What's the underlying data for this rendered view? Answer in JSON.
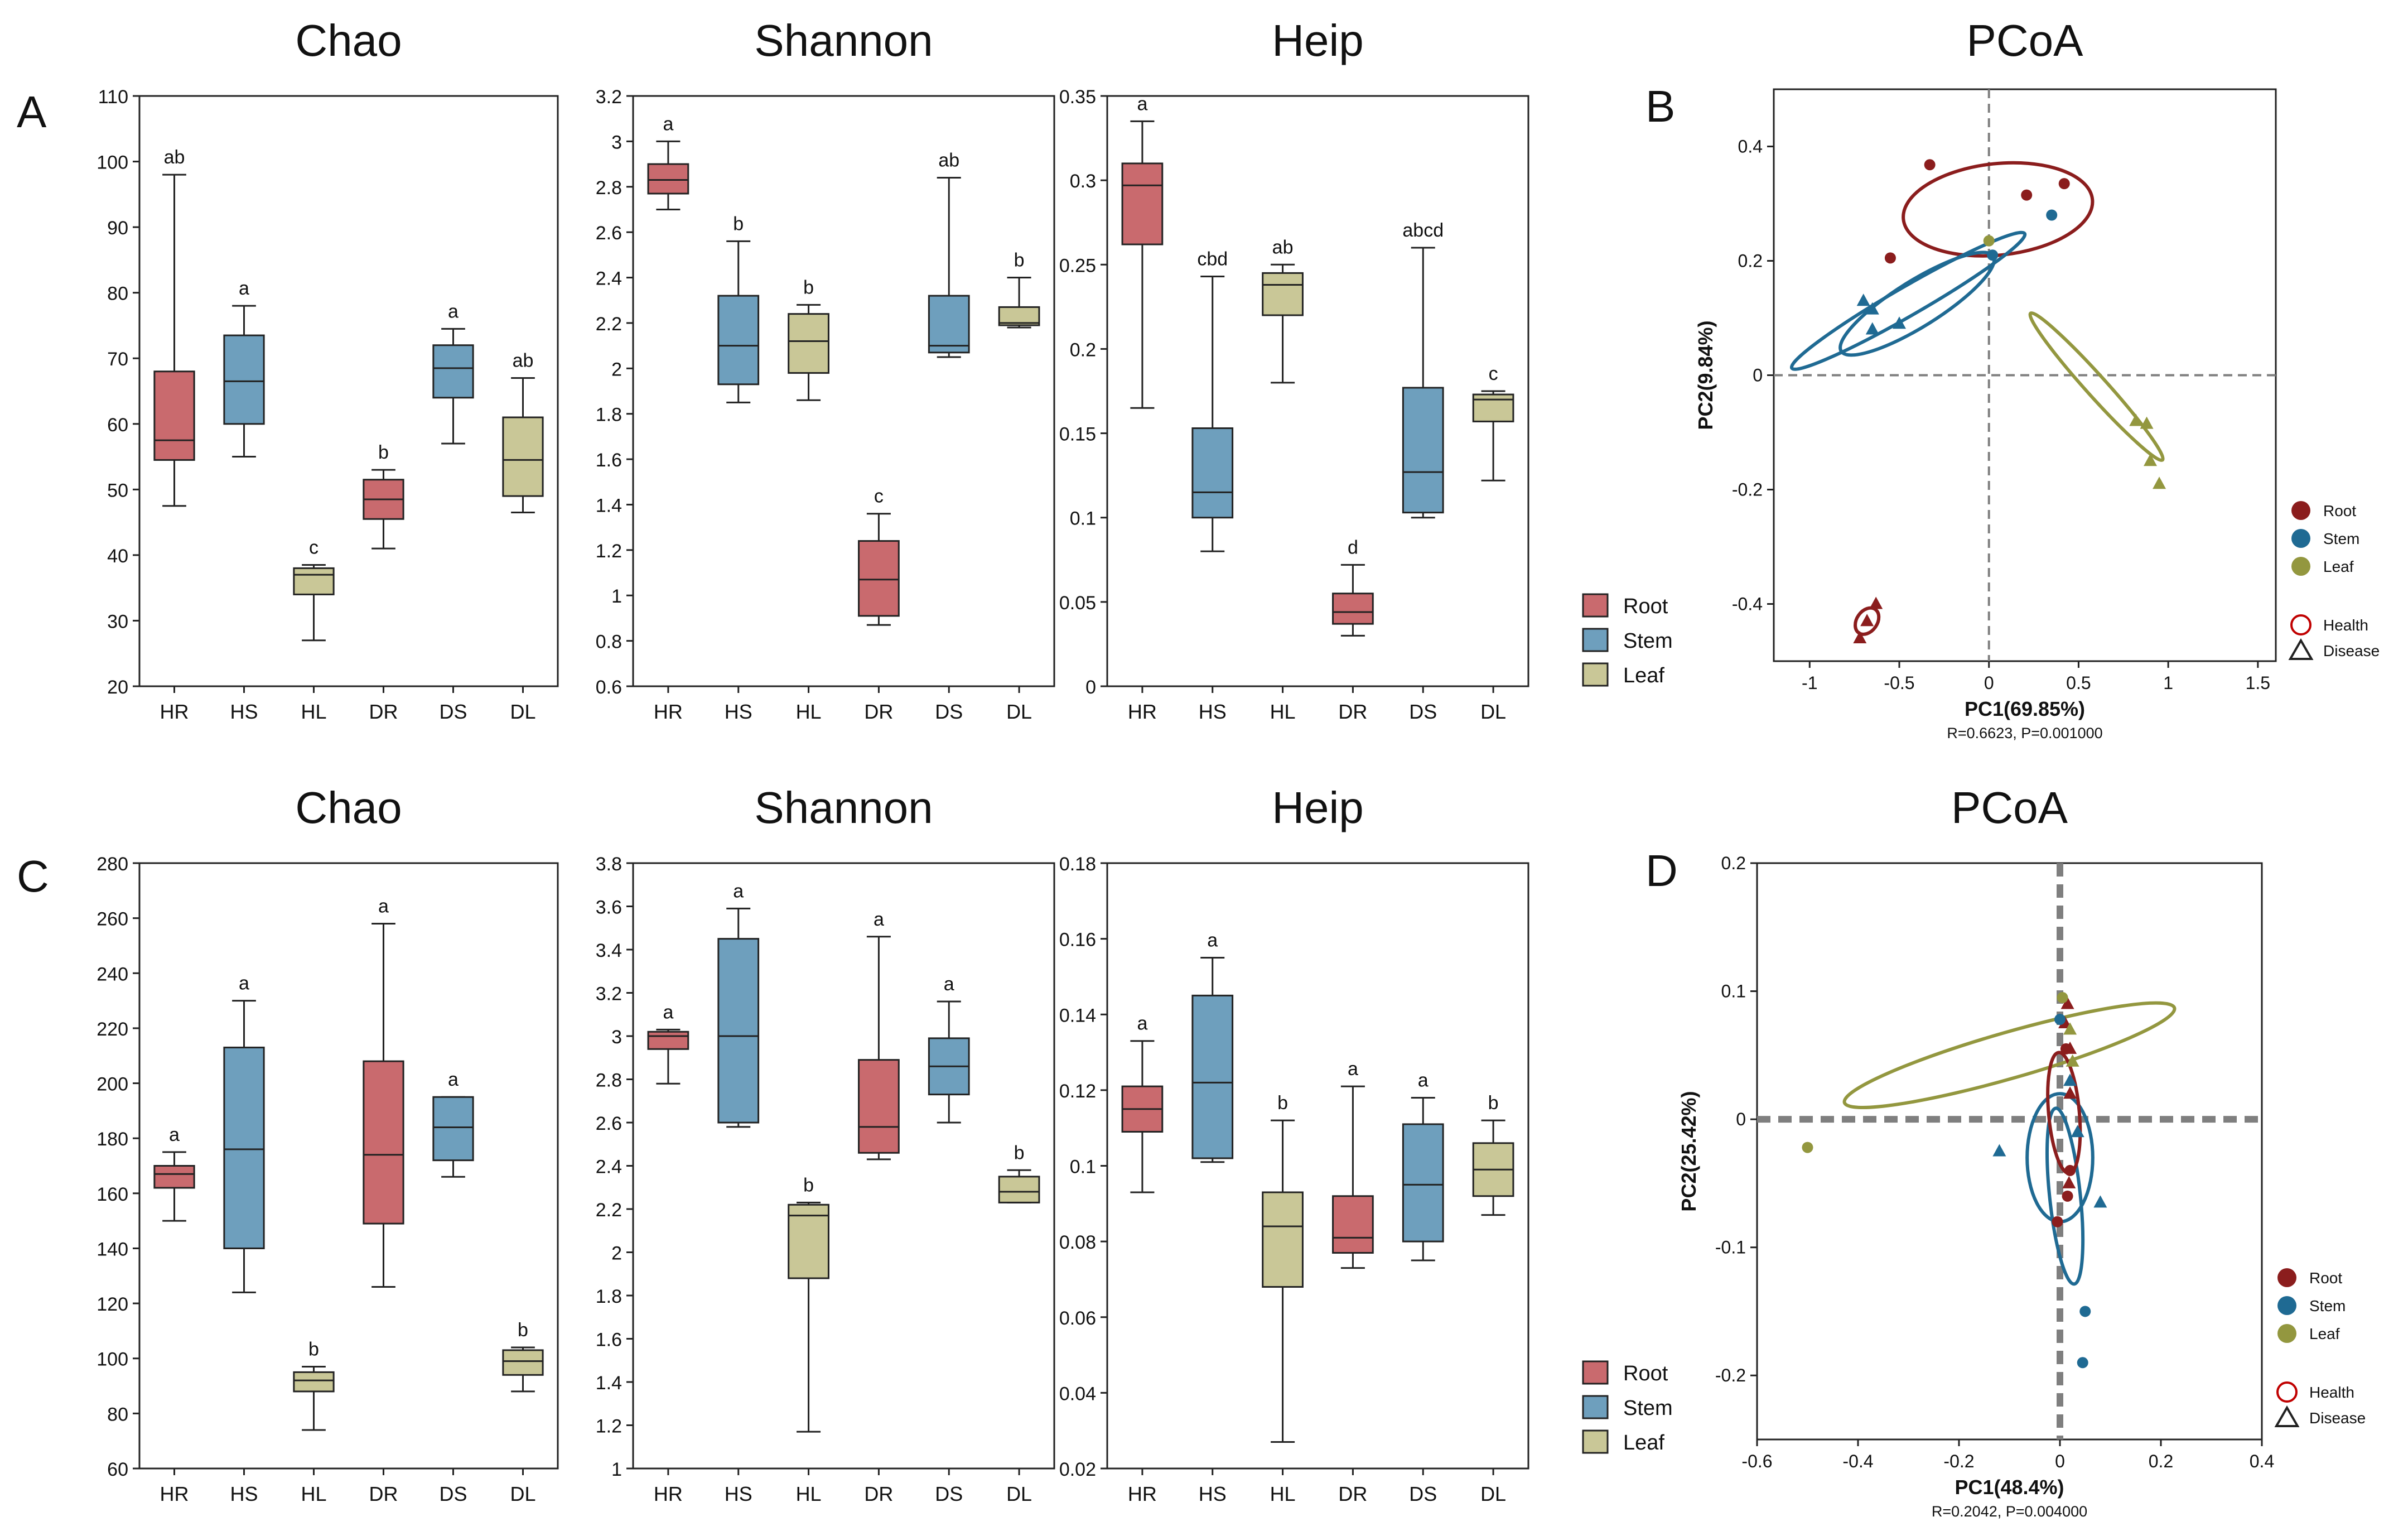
{
  "panel_letters": [
    "A",
    "B",
    "C",
    "D"
  ],
  "legend_groups": [
    {
      "name": "Root",
      "color": "#c96a6e"
    },
    {
      "name": "Stem",
      "color": "#6e9fbd"
    },
    {
      "name": "Leaf",
      "color": "#c9c797"
    }
  ],
  "pcoa_groups": [
    {
      "name": "Root",
      "color": "#8b1d1d"
    },
    {
      "name": "Stem",
      "color": "#1f6a93"
    },
    {
      "name": "Leaf",
      "color": "#93973f"
    }
  ],
  "pcoa_shapes": [
    {
      "name": "Health",
      "shape": "circle"
    },
    {
      "name": "Disease",
      "shape": "triangle"
    }
  ],
  "chart_data": [
    {
      "type": "box",
      "title": "Chao",
      "row": 0,
      "col": 0,
      "categories": [
        "HR",
        "HS",
        "HL",
        "DR",
        "DS",
        "DL"
      ],
      "ylim": [
        20,
        110
      ],
      "ticks": [
        20,
        30,
        40,
        50,
        60,
        70,
        80,
        90,
        100,
        110
      ],
      "boxes": [
        {
          "min": 47.5,
          "q1": 54.5,
          "median": 57.5,
          "q3": 68,
          "max": 98,
          "label": "ab"
        },
        {
          "min": 55,
          "q1": 60,
          "median": 66.5,
          "q3": 73.5,
          "max": 78,
          "label": "a"
        },
        {
          "min": 27,
          "q1": 34,
          "median": 37,
          "q3": 38,
          "max": 38.5,
          "label": "c"
        },
        {
          "min": 41,
          "q1": 45.5,
          "median": 48.5,
          "q3": 51.5,
          "max": 53,
          "label": "b"
        },
        {
          "min": 57,
          "q1": 64,
          "median": 68.5,
          "q3": 72,
          "max": 74.5,
          "label": "a"
        },
        {
          "min": 46.5,
          "q1": 49,
          "median": 54.5,
          "q3": 61,
          "max": 67,
          "label": "ab"
        }
      ]
    },
    {
      "type": "box",
      "title": "Shannon",
      "row": 0,
      "col": 1,
      "categories": [
        "HR",
        "HS",
        "HL",
        "DR",
        "DS",
        "DL"
      ],
      "ylim": [
        0.6,
        3.2
      ],
      "ticks": [
        0.6,
        0.8,
        1,
        1.2,
        1.4,
        1.6,
        1.8,
        2,
        2.2,
        2.4,
        2.6,
        2.8,
        3,
        3.2
      ],
      "boxes": [
        {
          "min": 2.7,
          "q1": 2.77,
          "median": 2.83,
          "q3": 2.9,
          "max": 3.0,
          "label": "a"
        },
        {
          "min": 1.85,
          "q1": 1.93,
          "median": 2.1,
          "q3": 2.32,
          "max": 2.56,
          "label": "b"
        },
        {
          "min": 1.86,
          "q1": 1.98,
          "median": 2.12,
          "q3": 2.24,
          "max": 2.28,
          "label": "b"
        },
        {
          "min": 0.87,
          "q1": 0.91,
          "median": 1.07,
          "q3": 1.24,
          "max": 1.36,
          "label": "c"
        },
        {
          "min": 2.05,
          "q1": 2.07,
          "median": 2.1,
          "q3": 2.32,
          "max": 2.84,
          "label": "ab"
        },
        {
          "min": 2.18,
          "q1": 2.19,
          "median": 2.2,
          "q3": 2.27,
          "max": 2.4,
          "label": "b"
        }
      ]
    },
    {
      "type": "box",
      "title": "Heip",
      "row": 0,
      "col": 2,
      "categories": [
        "HR",
        "HS",
        "HL",
        "DR",
        "DS",
        "DL"
      ],
      "ylim": [
        0,
        0.35
      ],
      "ticks": [
        0,
        0.05,
        0.1,
        0.15,
        0.2,
        0.25,
        0.3,
        0.35
      ],
      "boxes": [
        {
          "min": 0.165,
          "q1": 0.262,
          "median": 0.297,
          "q3": 0.31,
          "max": 0.335,
          "label": "a"
        },
        {
          "min": 0.08,
          "q1": 0.1,
          "median": 0.115,
          "q3": 0.153,
          "max": 0.243,
          "label": "cbd"
        },
        {
          "min": 0.18,
          "q1": 0.22,
          "median": 0.238,
          "q3": 0.245,
          "max": 0.25,
          "label": "ab"
        },
        {
          "min": 0.03,
          "q1": 0.037,
          "median": 0.044,
          "q3": 0.055,
          "max": 0.072,
          "label": "d"
        },
        {
          "min": 0.1,
          "q1": 0.103,
          "median": 0.127,
          "q3": 0.177,
          "max": 0.26,
          "label": "abcd"
        },
        {
          "min": 0.122,
          "q1": 0.157,
          "median": 0.17,
          "q3": 0.173,
          "max": 0.175,
          "label": "c"
        }
      ]
    },
    {
      "type": "scatter",
      "subtype": "pcoa",
      "title": "PCoA",
      "row": 0,
      "xlabel": "PC1(69.85%)",
      "ylabel": "PC2(9.84%)",
      "stats": "R=0.6623, P=0.001000",
      "xlim": [
        -1.2,
        1.6
      ],
      "ylim": [
        -0.5,
        0.5
      ],
      "xticks": [
        -1,
        -0.5,
        0,
        0.5,
        1,
        1.5
      ],
      "yticks": [
        -0.4,
        -0.2,
        0,
        0.2,
        0.4
      ],
      "ref_style": "thin",
      "points": [
        {
          "group": 0,
          "shape": "circle",
          "x": -0.33,
          "y": 0.368
        },
        {
          "group": 0,
          "shape": "circle",
          "x": -0.55,
          "y": 0.205
        },
        {
          "group": 0,
          "shape": "circle",
          "x": 0.21,
          "y": 0.315
        },
        {
          "group": 0,
          "shape": "circle",
          "x": 0.42,
          "y": 0.335
        },
        {
          "group": 0,
          "shape": "triangle",
          "x": -0.72,
          "y": -0.46
        },
        {
          "group": 0,
          "shape": "triangle",
          "x": -0.68,
          "y": -0.43
        },
        {
          "group": 0,
          "shape": "triangle",
          "x": -0.63,
          "y": -0.4
        },
        {
          "group": 1,
          "shape": "circle",
          "x": 0.35,
          "y": 0.28
        },
        {
          "group": 1,
          "shape": "circle",
          "x": 0.02,
          "y": 0.21
        },
        {
          "group": 1,
          "shape": "triangle",
          "x": -0.7,
          "y": 0.13
        },
        {
          "group": 1,
          "shape": "triangle",
          "x": -0.65,
          "y": 0.115
        },
        {
          "group": 1,
          "shape": "triangle",
          "x": -0.5,
          "y": 0.09
        },
        {
          "group": 1,
          "shape": "triangle",
          "x": -0.65,
          "y": 0.08
        },
        {
          "group": 2,
          "shape": "circle",
          "x": 0.0,
          "y": 0.235
        },
        {
          "group": 2,
          "shape": "triangle",
          "x": 0.82,
          "y": -0.08
        },
        {
          "group": 2,
          "shape": "triangle",
          "x": 0.88,
          "y": -0.085
        },
        {
          "group": 2,
          "shape": "triangle",
          "x": 0.9,
          "y": -0.15
        },
        {
          "group": 2,
          "shape": "triangle",
          "x": 0.95,
          "y": -0.19
        }
      ],
      "ellipses": [
        {
          "group": 0,
          "cx": 0.05,
          "cy": 0.29,
          "rx": 0.53,
          "ry": 0.08,
          "angle": 6
        },
        {
          "group": 0,
          "cx": -0.68,
          "cy": -0.43,
          "rx": 0.08,
          "ry": 0.018,
          "angle": 55
        },
        {
          "group": 1,
          "cx": -0.45,
          "cy": 0.13,
          "rx": 0.75,
          "ry": 0.025,
          "angle": 30
        },
        {
          "group": 1,
          "cx": -0.4,
          "cy": 0.125,
          "rx": 0.5,
          "ry": 0.04,
          "angle": 32
        },
        {
          "group": 2,
          "cx": 0.6,
          "cy": -0.02,
          "rx": 0.55,
          "ry": 0.018,
          "angle": -48
        }
      ]
    },
    {
      "type": "box",
      "title": "Chao",
      "row": 1,
      "col": 0,
      "categories": [
        "HR",
        "HS",
        "HL",
        "DR",
        "DS",
        "DL"
      ],
      "ylim": [
        60,
        280
      ],
      "ticks": [
        60,
        80,
        100,
        120,
        140,
        160,
        180,
        200,
        220,
        240,
        260,
        280
      ],
      "boxes": [
        {
          "min": 150,
          "q1": 162,
          "median": 167,
          "q3": 170,
          "max": 175,
          "label": "a"
        },
        {
          "min": 124,
          "q1": 140,
          "median": 176,
          "q3": 213,
          "max": 230,
          "label": "a"
        },
        {
          "min": 74,
          "q1": 88,
          "median": 92,
          "q3": 95,
          "max": 97,
          "label": "b"
        },
        {
          "min": 126,
          "q1": 149,
          "median": 174,
          "q3": 208,
          "max": 258,
          "label": "a"
        },
        {
          "min": 166,
          "q1": 172,
          "median": 184,
          "q3": 195,
          "max": 195,
          "label": "a"
        },
        {
          "min": 88,
          "q1": 94,
          "median": 99,
          "q3": 103,
          "max": 104,
          "label": "b"
        }
      ]
    },
    {
      "type": "box",
      "title": "Shannon",
      "row": 1,
      "col": 1,
      "categories": [
        "HR",
        "HS",
        "HL",
        "DR",
        "DS",
        "DL"
      ],
      "ylim": [
        1,
        3.8
      ],
      "ticks": [
        1,
        1.2,
        1.4,
        1.6,
        1.8,
        2,
        2.2,
        2.4,
        2.6,
        2.8,
        3,
        3.2,
        3.4,
        3.6,
        3.8
      ],
      "boxes": [
        {
          "min": 2.78,
          "q1": 2.94,
          "median": 3.0,
          "q3": 3.02,
          "max": 3.03,
          "label": "a"
        },
        {
          "min": 2.58,
          "q1": 2.6,
          "median": 3.0,
          "q3": 3.45,
          "max": 3.59,
          "label": "a"
        },
        {
          "min": 1.17,
          "q1": 1.88,
          "median": 2.17,
          "q3": 2.22,
          "max": 2.23,
          "label": "b"
        },
        {
          "min": 2.43,
          "q1": 2.46,
          "median": 2.58,
          "q3": 2.89,
          "max": 3.46,
          "label": "a"
        },
        {
          "min": 2.6,
          "q1": 2.73,
          "median": 2.86,
          "q3": 2.99,
          "max": 3.16,
          "label": "a"
        },
        {
          "min": 2.23,
          "q1": 2.23,
          "median": 2.28,
          "q3": 2.35,
          "max": 2.38,
          "label": "b"
        }
      ]
    },
    {
      "type": "box",
      "title": "Heip",
      "row": 1,
      "col": 2,
      "categories": [
        "HR",
        "HS",
        "HL",
        "DR",
        "DS",
        "DL"
      ],
      "ylim": [
        0.02,
        0.18
      ],
      "ticks": [
        0.02,
        0.04,
        0.06,
        0.08,
        0.1,
        0.12,
        0.14,
        0.16,
        0.18
      ],
      "boxes": [
        {
          "min": 0.093,
          "q1": 0.109,
          "median": 0.115,
          "q3": 0.121,
          "max": 0.133,
          "label": "a"
        },
        {
          "min": 0.101,
          "q1": 0.102,
          "median": 0.122,
          "q3": 0.145,
          "max": 0.155,
          "label": "a"
        },
        {
          "min": 0.027,
          "q1": 0.068,
          "median": 0.084,
          "q3": 0.093,
          "max": 0.112,
          "label": "b"
        },
        {
          "min": 0.073,
          "q1": 0.077,
          "median": 0.081,
          "q3": 0.092,
          "max": 0.121,
          "label": "a"
        },
        {
          "min": 0.075,
          "q1": 0.08,
          "median": 0.095,
          "q3": 0.111,
          "max": 0.118,
          "label": "a"
        },
        {
          "min": 0.087,
          "q1": 0.092,
          "median": 0.099,
          "q3": 0.106,
          "max": 0.112,
          "label": "b"
        }
      ]
    },
    {
      "type": "scatter",
      "subtype": "pcoa",
      "title": "PCoA",
      "row": 1,
      "xlabel": "PC1(48.4%)",
      "ylabel": "PC2(25.42%)",
      "stats": "R=0.2042, P=0.004000",
      "xlim": [
        -0.6,
        0.4
      ],
      "ylim": [
        -0.25,
        0.2
      ],
      "xticks": [
        -0.6,
        -0.4,
        -0.2,
        0,
        0.2,
        0.4
      ],
      "yticks": [
        -0.2,
        -0.1,
        0,
        0.1,
        0.2
      ],
      "ref_style": "thick",
      "points": [
        {
          "group": 0,
          "shape": "circle",
          "x": 0.012,
          "y": 0.055
        },
        {
          "group": 0,
          "shape": "circle",
          "x": 0.02,
          "y": -0.04
        },
        {
          "group": 0,
          "shape": "circle",
          "x": 0.015,
          "y": -0.06
        },
        {
          "group": 0,
          "shape": "circle",
          "x": -0.005,
          "y": -0.08
        },
        {
          "group": 0,
          "shape": "triangle",
          "x": 0.015,
          "y": 0.09
        },
        {
          "group": 0,
          "shape": "triangle",
          "x": 0.01,
          "y": 0.075
        },
        {
          "group": 0,
          "shape": "triangle",
          "x": 0.02,
          "y": 0.055
        },
        {
          "group": 0,
          "shape": "triangle",
          "x": 0.02,
          "y": 0.02
        },
        {
          "group": 0,
          "shape": "triangle",
          "x": 0.018,
          "y": -0.05
        },
        {
          "group": 1,
          "shape": "circle",
          "x": 0.0,
          "y": 0.078
        },
        {
          "group": 1,
          "shape": "circle",
          "x": 0.05,
          "y": -0.15
        },
        {
          "group": 1,
          "shape": "circle",
          "x": 0.045,
          "y": -0.19
        },
        {
          "group": 1,
          "shape": "triangle",
          "x": -0.12,
          "y": -0.025
        },
        {
          "group": 1,
          "shape": "triangle",
          "x": 0.035,
          "y": -0.01
        },
        {
          "group": 1,
          "shape": "triangle",
          "x": 0.08,
          "y": -0.065
        },
        {
          "group": 1,
          "shape": "triangle",
          "x": 0.02,
          "y": 0.03
        },
        {
          "group": 2,
          "shape": "circle",
          "x": -0.5,
          "y": -0.022
        },
        {
          "group": 2,
          "shape": "circle",
          "x": 0.005,
          "y": 0.095
        },
        {
          "group": 2,
          "shape": "triangle",
          "x": 0.02,
          "y": 0.07
        },
        {
          "group": 2,
          "shape": "triangle",
          "x": 0.025,
          "y": 0.045
        }
      ],
      "ellipses": [
        {
          "group": 1,
          "cx": 0.01,
          "cy": -0.06,
          "rx": 0.175,
          "ry": 0.012,
          "angle": -84
        },
        {
          "group": 1,
          "cx": 0.0,
          "cy": -0.03,
          "rx": 0.065,
          "ry": 0.05,
          "angle": 0
        },
        {
          "group": 2,
          "cx": -0.1,
          "cy": 0.05,
          "rx": 0.34,
          "ry": 0.018,
          "angle": 16
        },
        {
          "group": 0,
          "cx": 0.008,
          "cy": 0.005,
          "rx": 0.12,
          "ry": 0.012,
          "angle": -85
        }
      ]
    }
  ]
}
